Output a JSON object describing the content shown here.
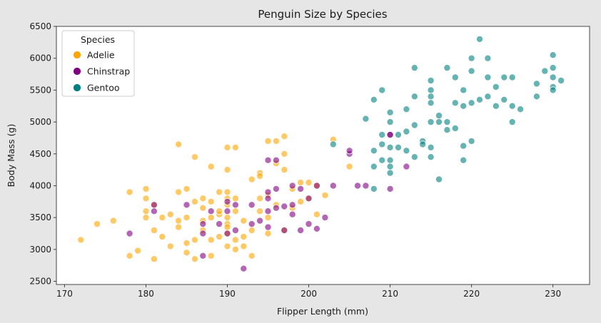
{
  "chart_data": {
    "type": "scatter",
    "title": "Penguin Size by Species",
    "xlabel": "Flipper Length (mm)",
    "ylabel": "Body Mass (g)",
    "xlim": [
      169,
      234.5
    ],
    "ylim": [
      2450,
      6500
    ],
    "xticks": [
      "170",
      "180",
      "190",
      "200",
      "210",
      "220",
      "230"
    ],
    "yticks": [
      "2500",
      "3000",
      "3500",
      "4000",
      "4500",
      "5000",
      "5500",
      "6000",
      "6500"
    ],
    "grid": false,
    "legend": {
      "title": "Species",
      "placement": "top-left"
    },
    "series": [
      {
        "name": "Adelie",
        "color": "#FFA500",
        "points": [
          [
            172,
            3150
          ],
          [
            174,
            3400
          ],
          [
            176,
            3450
          ],
          [
            178,
            3900
          ],
          [
            178,
            2900
          ],
          [
            179,
            2980
          ],
          [
            180,
            3950
          ],
          [
            180,
            3500
          ],
          [
            180,
            3600
          ],
          [
            180,
            3800
          ],
          [
            181,
            2850
          ],
          [
            181,
            3300
          ],
          [
            181,
            3700
          ],
          [
            182,
            3200
          ],
          [
            182,
            3500
          ],
          [
            183,
            3050
          ],
          [
            183,
            3550
          ],
          [
            184,
            4650
          ],
          [
            184,
            3900
          ],
          [
            184,
            3350
          ],
          [
            184,
            3450
          ],
          [
            185,
            2950
          ],
          [
            185,
            3100
          ],
          [
            185,
            3500
          ],
          [
            185,
            3950
          ],
          [
            186,
            3750
          ],
          [
            186,
            3150
          ],
          [
            186,
            4450
          ],
          [
            186,
            2850
          ],
          [
            187,
            3800
          ],
          [
            187,
            3450
          ],
          [
            187,
            3650
          ],
          [
            187,
            3300
          ],
          [
            188,
            3500
          ],
          [
            188,
            3150
          ],
          [
            188,
            4300
          ],
          [
            188,
            2900
          ],
          [
            188,
            3750
          ],
          [
            189,
            3550
          ],
          [
            189,
            3900
          ],
          [
            189,
            3200
          ],
          [
            189,
            3600
          ],
          [
            190,
            4600
          ],
          [
            190,
            4250
          ],
          [
            190,
            3900
          ],
          [
            190,
            3800
          ],
          [
            190,
            3700
          ],
          [
            190,
            3500
          ],
          [
            190,
            3400
          ],
          [
            190,
            3350
          ],
          [
            190,
            3050
          ],
          [
            190,
            3250
          ],
          [
            191,
            3150
          ],
          [
            191,
            3000
          ],
          [
            191,
            3800
          ],
          [
            191,
            3600
          ],
          [
            191,
            4600
          ],
          [
            192,
            3050
          ],
          [
            192,
            3200
          ],
          [
            192,
            3450
          ],
          [
            193,
            3300
          ],
          [
            193,
            4100
          ],
          [
            193,
            2900
          ],
          [
            194,
            4200
          ],
          [
            194,
            3600
          ],
          [
            194,
            3800
          ],
          [
            194,
            4150
          ],
          [
            195,
            4700
          ],
          [
            195,
            3250
          ],
          [
            195,
            3500
          ],
          [
            195,
            3850
          ],
          [
            196,
            3700
          ],
          [
            196,
            4700
          ],
          [
            196,
            4350
          ],
          [
            197,
            4250
          ],
          [
            197,
            4500
          ],
          [
            197,
            4775
          ],
          [
            197,
            3300
          ],
          [
            198,
            3650
          ],
          [
            198,
            3950
          ],
          [
            199,
            4050
          ],
          [
            199,
            3750
          ],
          [
            200,
            4050
          ],
          [
            200,
            3800
          ],
          [
            201,
            4000
          ],
          [
            201,
            3550
          ],
          [
            202,
            3850
          ],
          [
            203,
            4725
          ],
          [
            205,
            4300
          ]
        ]
      },
      {
        "name": "Chinstrap",
        "color": "#800080",
        "points": [
          [
            178,
            3250
          ],
          [
            181,
            3700
          ],
          [
            181,
            3600
          ],
          [
            185,
            3700
          ],
          [
            187,
            3250
          ],
          [
            187,
            2900
          ],
          [
            187,
            3400
          ],
          [
            188,
            3600
          ],
          [
            189,
            3400
          ],
          [
            190,
            3250
          ],
          [
            190,
            3600
          ],
          [
            190,
            3750
          ],
          [
            191,
            3300
          ],
          [
            191,
            3700
          ],
          [
            192,
            2700
          ],
          [
            193,
            3400
          ],
          [
            193,
            3700
          ],
          [
            194,
            3450
          ],
          [
            195,
            3600
          ],
          [
            195,
            3350
          ],
          [
            195,
            4400
          ],
          [
            195,
            3900
          ],
          [
            195,
            3800
          ],
          [
            196,
            3650
          ],
          [
            196,
            4400
          ],
          [
            196,
            3950
          ],
          [
            197,
            3300
          ],
          [
            197,
            3675
          ],
          [
            198,
            3550
          ],
          [
            198,
            3700
          ],
          [
            198,
            4000
          ],
          [
            199,
            3300
          ],
          [
            199,
            3950
          ],
          [
            200,
            3400
          ],
          [
            200,
            3800
          ],
          [
            201,
            3325
          ],
          [
            201,
            4000
          ],
          [
            202,
            3500
          ],
          [
            203,
            4000
          ],
          [
            205,
            4500
          ],
          [
            205,
            4550
          ],
          [
            206,
            4000
          ],
          [
            207,
            4000
          ],
          [
            210,
            4800
          ],
          [
            210,
            3950
          ],
          [
            210,
            4800
          ],
          [
            212,
            4300
          ]
        ]
      },
      {
        "name": "Gentoo",
        "color": "#008080",
        "points": [
          [
            203,
            4650
          ],
          [
            207,
            5050
          ],
          [
            208,
            4300
          ],
          [
            208,
            5350
          ],
          [
            208,
            4550
          ],
          [
            208,
            3950
          ],
          [
            209,
            4400
          ],
          [
            209,
            4650
          ],
          [
            209,
            4800
          ],
          [
            209,
            5500
          ],
          [
            210,
            4200
          ],
          [
            210,
            4400
          ],
          [
            210,
            4600
          ],
          [
            210,
            4300
          ],
          [
            210,
            5150
          ],
          [
            210,
            5000
          ],
          [
            211,
            4800
          ],
          [
            211,
            4600
          ],
          [
            212,
            4850
          ],
          [
            212,
            5200
          ],
          [
            212,
            4550
          ],
          [
            213,
            4950
          ],
          [
            213,
            5400
          ],
          [
            213,
            5850
          ],
          [
            213,
            4450
          ],
          [
            214,
            4700
          ],
          [
            214,
            4650
          ],
          [
            215,
            5000
          ],
          [
            215,
            5500
          ],
          [
            215,
            4600
          ],
          [
            215,
            5650
          ],
          [
            215,
            5400
          ],
          [
            215,
            5300
          ],
          [
            215,
            4450
          ],
          [
            216,
            5100
          ],
          [
            216,
            4100
          ],
          [
            216,
            5000
          ],
          [
            217,
            5850
          ],
          [
            217,
            4875
          ],
          [
            217,
            5000
          ],
          [
            218,
            5700
          ],
          [
            218,
            5300
          ],
          [
            218,
            4900
          ],
          [
            219,
            5500
          ],
          [
            219,
            5250
          ],
          [
            219,
            4400
          ],
          [
            219,
            4625
          ],
          [
            220,
            6000
          ],
          [
            220,
            5800
          ],
          [
            220,
            5300
          ],
          [
            220,
            4700
          ],
          [
            221,
            6300
          ],
          [
            221,
            5350
          ],
          [
            222,
            5400
          ],
          [
            222,
            5700
          ],
          [
            222,
            6000
          ],
          [
            223,
            5550
          ],
          [
            223,
            5250
          ],
          [
            224,
            5700
          ],
          [
            224,
            5350
          ],
          [
            225,
            5000
          ],
          [
            225,
            5250
          ],
          [
            225,
            5700
          ],
          [
            226,
            5200
          ],
          [
            228,
            5600
          ],
          [
            228,
            5400
          ],
          [
            229,
            5800
          ],
          [
            230,
            6050
          ],
          [
            230,
            5700
          ],
          [
            230,
            5550
          ],
          [
            230,
            5850
          ],
          [
            230,
            5500
          ],
          [
            231,
            5650
          ]
        ]
      }
    ]
  }
}
